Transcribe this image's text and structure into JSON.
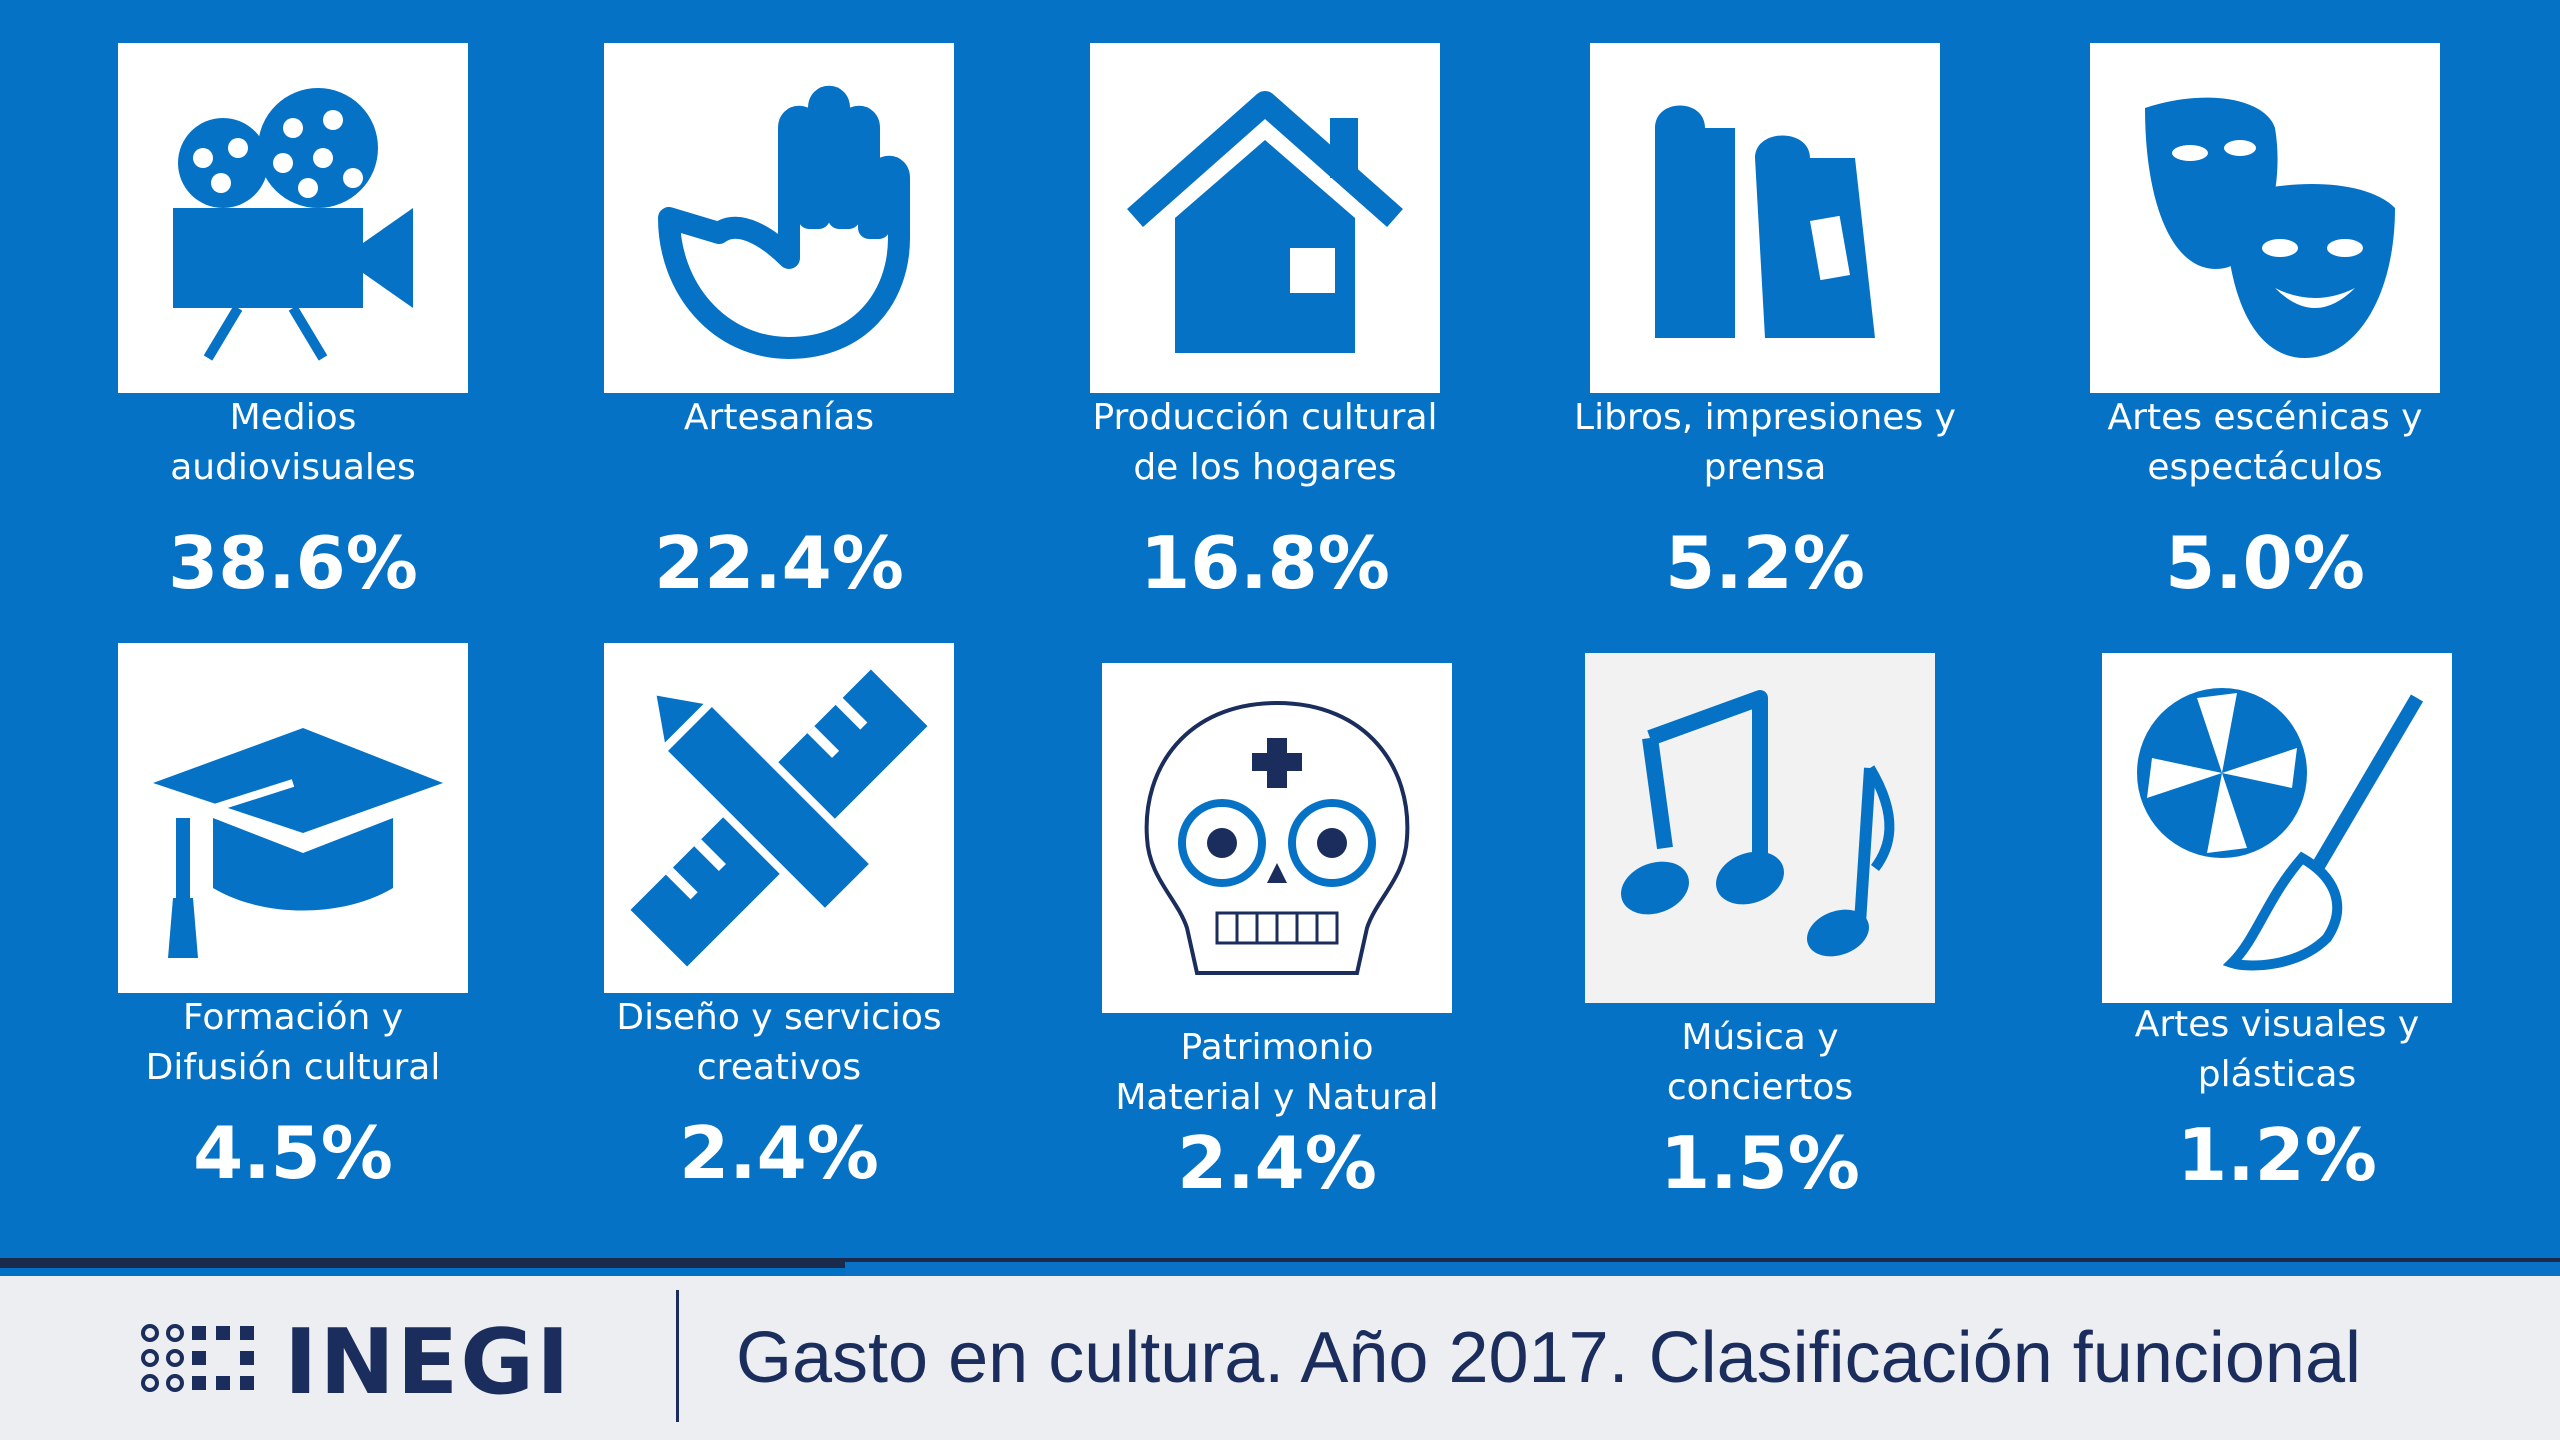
{
  "categories": [
    {
      "label": "Medios\naudiovisuales",
      "value": "38.6%",
      "icon": "film-camera-icon"
    },
    {
      "label": "Artesanías",
      "value": "22.4%",
      "icon": "hands-icon"
    },
    {
      "label": "Producción cultural\nde los hogares",
      "value": "16.8%",
      "icon": "house-icon"
    },
    {
      "label": "Libros, impresiones y\nprensa",
      "value": "5.2%",
      "icon": "books-icon"
    },
    {
      "label": "Artes escénicas y\nespectáculos",
      "value": "5.0%",
      "icon": "theater-masks-icon"
    },
    {
      "label": "Formación y\nDifusión cultural",
      "value": "4.5%",
      "icon": "graduation-cap-icon"
    },
    {
      "label": "Diseño y servicios\ncreativos",
      "value": "2.4%",
      "icon": "pencil-ruler-icon"
    },
    {
      "label": "Patrimonio\nMaterial y Natural",
      "value": "2.4%",
      "icon": "sugar-skull-icon"
    },
    {
      "label": "Música y\nconciertos",
      "value": "1.5%",
      "icon": "music-notes-icon"
    },
    {
      "label": "Artes visuales y\nplásticas",
      "value": "1.2%",
      "icon": "aperture-brush-icon"
    }
  ],
  "footer": {
    "logo_text": "INEGI",
    "title": "Gasto en cultura. Año 2017. Clasificación funcional"
  },
  "colors": {
    "background": "#0572c6",
    "accent_dark": "#1b2d5c",
    "footer_bg": "#eceef1"
  }
}
